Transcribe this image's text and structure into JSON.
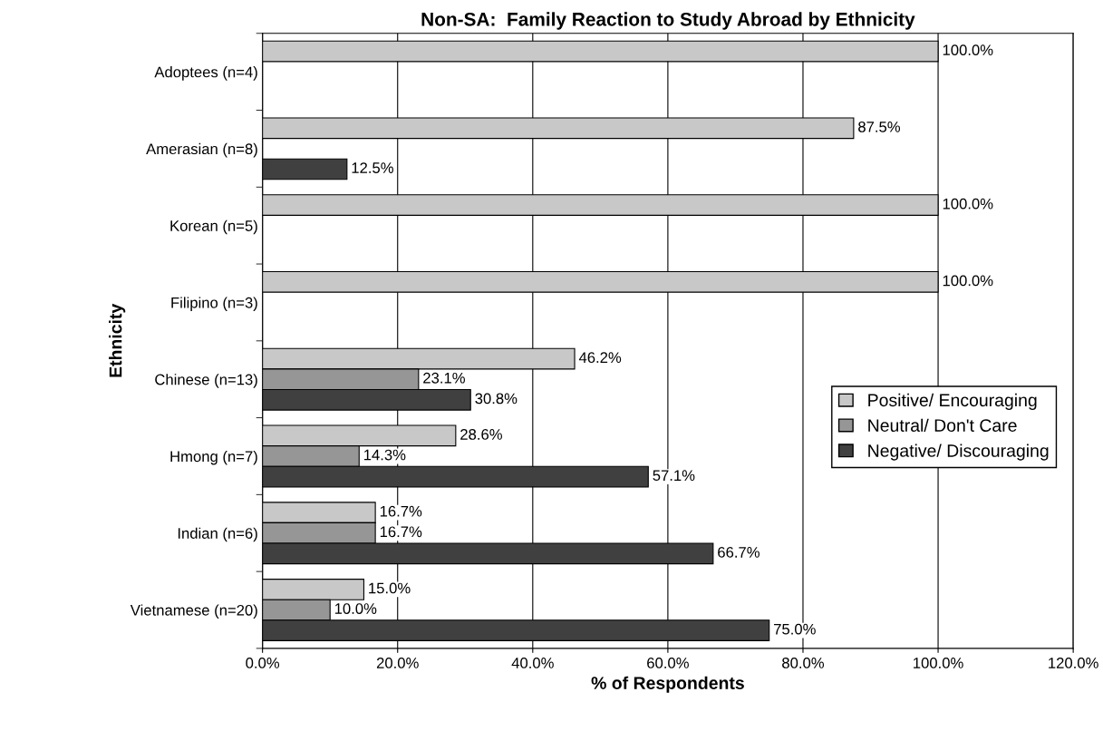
{
  "chart_data": {
    "type": "bar",
    "orientation": "horizontal",
    "title": "Non-SA:  Family Reaction to Study Abroad by Ethnicity",
    "xlabel": "% of Respondents",
    "ylabel": "Ethnicity",
    "categories": [
      "Adoptees (n=4)",
      "Amerasian (n=8)",
      "Korean (n=5)",
      "Filipino (n=3)",
      "Chinese (n=13)",
      "Hmong (n=7)",
      "Indian (n=6)",
      "Vietnamese (n=20)"
    ],
    "series": [
      {
        "name": "Positive/ Encouraging",
        "color": "#c8c8c8",
        "values": [
          100.0,
          87.5,
          100.0,
          100.0,
          46.2,
          28.6,
          16.7,
          15.0
        ],
        "value_labels": [
          "100.0%",
          "87.5%",
          "100.0%",
          "100.0%",
          "46.2%",
          "28.6%",
          "16.7%",
          "15.0%"
        ]
      },
      {
        "name": "Neutral/ Don't Care",
        "color": "#969696",
        "values": [
          null,
          null,
          null,
          null,
          23.1,
          14.3,
          16.7,
          10.0
        ],
        "value_labels": [
          null,
          null,
          null,
          null,
          "23.1%",
          "14.3%",
          "16.7%",
          "10.0%"
        ]
      },
      {
        "name": "Negative/ Discouraging",
        "color": "#404040",
        "values": [
          null,
          12.5,
          null,
          null,
          30.8,
          57.1,
          66.7,
          75.0
        ],
        "value_labels": [
          null,
          "12.5%",
          null,
          null,
          "30.8%",
          "57.1%",
          "66.7%",
          "75.0%"
        ]
      }
    ],
    "xlim": [
      0,
      120
    ],
    "xticks": [
      {
        "value": 0,
        "label": "0.0%"
      },
      {
        "value": 20,
        "label": "20.0%"
      },
      {
        "value": 40,
        "label": "40.0%"
      },
      {
        "value": 60,
        "label": "60.0%"
      },
      {
        "value": 80,
        "label": "80.0%"
      },
      {
        "value": 100,
        "label": "100.0%"
      },
      {
        "value": 120,
        "label": "120.0%"
      }
    ],
    "grid": "x",
    "legend": "right"
  }
}
